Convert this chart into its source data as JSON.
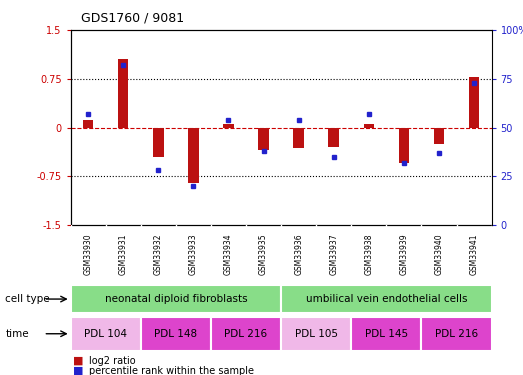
{
  "title": "GDS1760 / 9081",
  "samples": [
    "GSM33930",
    "GSM33931",
    "GSM33932",
    "GSM33933",
    "GSM33934",
    "GSM33935",
    "GSM33936",
    "GSM33937",
    "GSM33938",
    "GSM33939",
    "GSM33940",
    "GSM33941"
  ],
  "log2_ratio": [
    0.12,
    1.05,
    -0.45,
    -0.85,
    0.05,
    -0.35,
    -0.32,
    -0.3,
    0.05,
    -0.55,
    -0.25,
    0.78
  ],
  "percentile_rank": [
    57,
    82,
    28,
    20,
    54,
    38,
    54,
    35,
    57,
    32,
    37,
    73
  ],
  "ylim_left": [
    -1.5,
    1.5
  ],
  "ylim_right": [
    0,
    100
  ],
  "yticks_left": [
    -1.5,
    -0.75,
    0,
    0.75,
    1.5
  ],
  "yticks_right": [
    0,
    25,
    50,
    75,
    100
  ],
  "ytick_labels_left": [
    "-1.5",
    "-0.75",
    "0",
    "0.75",
    "1.5"
  ],
  "ytick_labels_right": [
    "0",
    "25",
    "50",
    "75",
    "100%"
  ],
  "hlines_dotted": [
    0.75,
    -0.75
  ],
  "hline_dashed": 0,
  "cell_type_groups": [
    {
      "label": "neonatal diploid fibroblasts",
      "start": 0,
      "end": 6,
      "color": "#88dd88"
    },
    {
      "label": "umbilical vein endothelial cells",
      "start": 6,
      "end": 12,
      "color": "#88dd88"
    }
  ],
  "time_groups": [
    {
      "label": "PDL 104",
      "start": 0,
      "end": 2,
      "color": "#f0b8e8"
    },
    {
      "label": "PDL 148",
      "start": 2,
      "end": 4,
      "color": "#dd44cc"
    },
    {
      "label": "PDL 216",
      "start": 4,
      "end": 6,
      "color": "#dd44cc"
    },
    {
      "label": "PDL 105",
      "start": 6,
      "end": 8,
      "color": "#f0b8e8"
    },
    {
      "label": "PDL 145",
      "start": 8,
      "end": 10,
      "color": "#dd44cc"
    },
    {
      "label": "PDL 216",
      "start": 10,
      "end": 12,
      "color": "#dd44cc"
    }
  ],
  "bar_color": "#bb1111",
  "dot_color": "#2222cc",
  "bg_color": "#ffffff",
  "sample_bg_color": "#cccccc",
  "bar_width": 0.3,
  "legend_items": [
    "log2 ratio",
    "percentile rank within the sample"
  ]
}
